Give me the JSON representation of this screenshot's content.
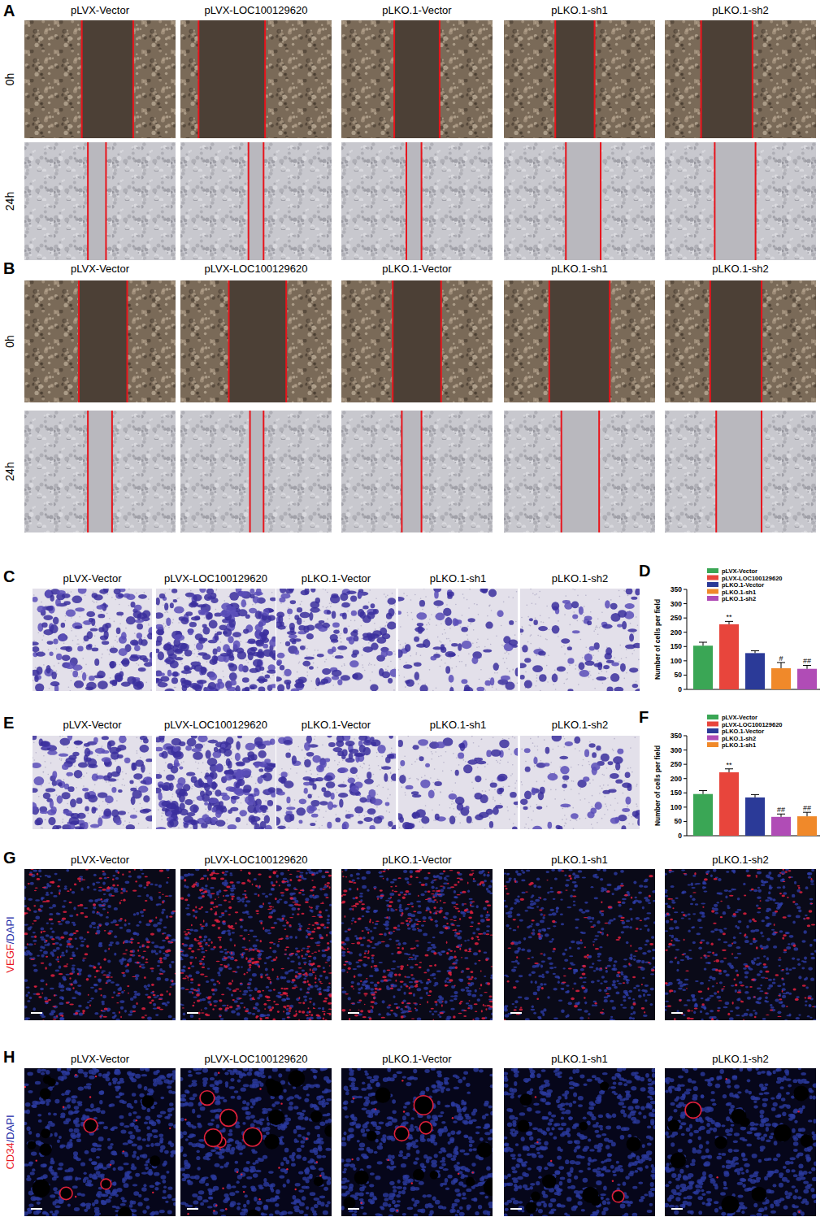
{
  "figure": {
    "panels": [
      {
        "label": "A",
        "columns": [
          "pLVX-Vector",
          "pLVX-LOC100129620",
          "pLKO.1-Vector",
          "pLKO.1-sh1",
          "pLKO.1-sh2"
        ],
        "rows": [
          "0h",
          "24h"
        ]
      },
      {
        "label": "B",
        "columns": [
          "pLVX-Vector",
          "pLVX-LOC100129620",
          "pLKO.1-Vector",
          "pLKO.1-sh1",
          "pLKO.1-sh2"
        ],
        "rows": [
          "0h",
          "24h"
        ]
      },
      {
        "label": "C",
        "columns": [
          "pLVX-Vector",
          "pLVX-LOC100129620",
          "pLKO.1-Vector",
          "pLKO.1-sh1",
          "pLKO.1-sh2"
        ]
      },
      {
        "label": "E",
        "columns": [
          "pLVX-Vector",
          "pLVX-LOC100129620",
          "pLKO.1-Vector",
          "pLKO.1-sh1",
          "pLKO.1-sh2"
        ]
      },
      {
        "label": "G",
        "columns": [
          "pLVX-Vector",
          "pLVX-LOC100129620",
          "pLKO.1-Vector",
          "pLKO.1-sh1",
          "pLKO.1-sh2"
        ],
        "stain": [
          "VEGF",
          "/DAPI"
        ]
      },
      {
        "label": "H",
        "columns": [
          "pLVX-Vector",
          "pLVX-LOC100129620",
          "pLKO.1-Vector",
          "pLKO.1-sh1",
          "pLKO.1-sh2"
        ],
        "stain": [
          "CD34",
          "/DAPI"
        ]
      }
    ]
  },
  "chart_data": [
    {
      "panel_label": "D",
      "type": "bar",
      "y_label": "Number of cells per field",
      "categories": [
        null
      ],
      "tick_labels": "y",
      "ylim": [
        0,
        350
      ],
      "yticks": [
        0,
        50,
        100,
        150,
        200,
        250,
        300,
        350
      ],
      "legend": "top-right",
      "series": [
        {
          "name": "pLVX-Vector",
          "color": "#3aa655",
          "values": [
            153
          ],
          "errors": [
            12
          ]
        },
        {
          "name": "pLVX-LOC100129620",
          "color": "#e8453c",
          "values": [
            228
          ],
          "errors": [
            10
          ],
          "annotations": [
            "**"
          ]
        },
        {
          "name": "pLKO.1-Vector",
          "color": "#2b3a98",
          "values": [
            127
          ],
          "errors": [
            8
          ]
        },
        {
          "name": "pLKO.1-sh1",
          "color": "#f0892a",
          "values": [
            74
          ],
          "errors": [
            20
          ],
          "annotations": [
            "#"
          ]
        },
        {
          "name": "pLKO.1-sh2",
          "color": "#b04cb6",
          "values": [
            72
          ],
          "errors": [
            12
          ],
          "annotations": [
            "##"
          ]
        }
      ]
    },
    {
      "panel_label": "F",
      "type": "bar",
      "y_label": "Number of cells per field",
      "categories": [
        null
      ],
      "tick_labels": "y",
      "ylim": [
        0,
        350
      ],
      "yticks": [
        0,
        50,
        100,
        150,
        200,
        250,
        300,
        350
      ],
      "legend": "top-right",
      "series": [
        {
          "name": "pLVX-Vector",
          "color": "#3aa655",
          "values": [
            146
          ],
          "errors": [
            12
          ]
        },
        {
          "name": "pLVX-LOC100129620",
          "color": "#e8453c",
          "values": [
            222
          ],
          "errors": [
            12
          ],
          "annotations": [
            "**"
          ]
        },
        {
          "name": "pLKO.1-Vector",
          "color": "#2b3a98",
          "values": [
            134
          ],
          "errors": [
            10
          ]
        },
        {
          "name": "pLKO.1-sh2",
          "color": "#b04cb6",
          "values": [
            66
          ],
          "errors": [
            10
          ],
          "annotations": [
            "##"
          ]
        },
        {
          "name": "pLKO.1-sh1",
          "color": "#f0892a",
          "values": [
            68
          ],
          "errors": [
            14
          ],
          "annotations": [
            "##"
          ]
        }
      ]
    }
  ]
}
